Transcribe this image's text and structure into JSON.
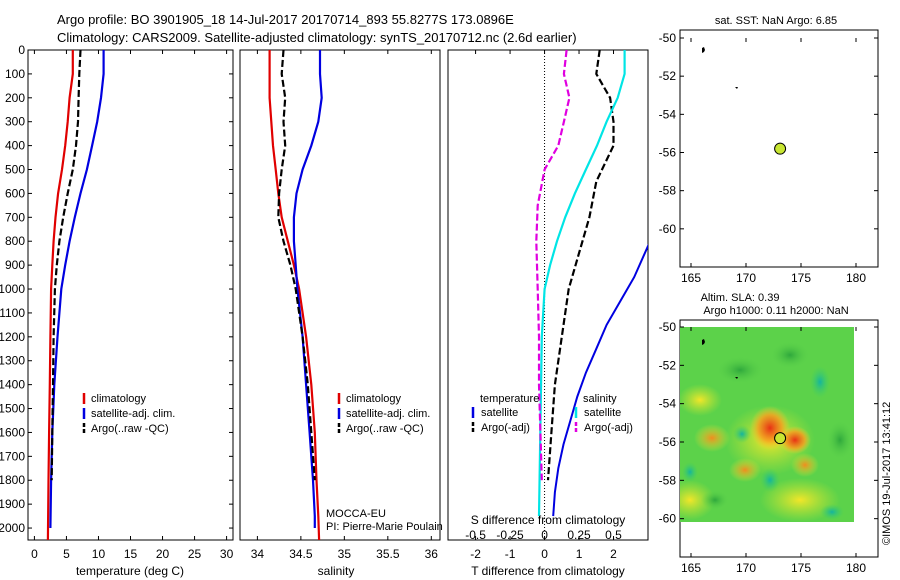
{
  "header": {
    "title_line1": "Argo profile: BO 3901905_18 14-Jul-2017 20170714_893 55.8277S 173.0896E",
    "title_line2": "Climatology: CARS2009. Satellite-adjusted climatology: synTS_20170712.nc (2.6d earlier)"
  },
  "footer": {
    "stamp": "©IMOS 19-Jul-2017 13:41:12",
    "institute": "MOCCA-EU",
    "pi": "PI: Pierre-Marie Poulain"
  },
  "colors": {
    "climatology": "#e00000",
    "satellite": "#0000e0",
    "argo": "#000000",
    "satellite_salinity": "#00e5e5",
    "argo_salinity": "#e000e0",
    "marker": "#c8e632"
  },
  "chart_data": [
    {
      "type": "line",
      "name": "temperature",
      "xlabel": "temperature (deg C)",
      "xlim": [
        -1,
        31
      ],
      "ylim": [
        2050,
        0
      ],
      "xticks": [
        "0",
        "5",
        "10",
        "15",
        "20",
        "25",
        "30"
      ],
      "yticks": [
        "0",
        "100",
        "200",
        "300",
        "400",
        "500",
        "600",
        "700",
        "800",
        "900",
        "1000",
        "1100",
        "1200",
        "1300",
        "1400",
        "1500",
        "1600",
        "1700",
        "1800",
        "1900",
        "2000"
      ],
      "legend": [
        "climatology",
        "satellite-adj. clim.",
        "Argo(..raw -QC)"
      ],
      "series": [
        {
          "name": "climatology",
          "x": [
            6.0,
            6.0,
            5.5,
            5.2,
            4.8,
            4.3,
            3.7,
            3.3,
            3.0,
            2.8,
            2.6,
            2.5,
            2.4,
            2.3,
            2.2,
            2.1
          ],
          "y": [
            0,
            100,
            200,
            300,
            400,
            500,
            600,
            700,
            800,
            900,
            1000,
            1200,
            1400,
            1600,
            1800,
            2050
          ]
        },
        {
          "name": "satellite-adj. clim.",
          "x": [
            10.8,
            10.8,
            10.4,
            9.8,
            9.0,
            8.2,
            7.2,
            6.3,
            5.5,
            4.8,
            4.2,
            3.6,
            3.1,
            2.8,
            2.6,
            2.5
          ],
          "y": [
            0,
            100,
            200,
            300,
            400,
            500,
            600,
            700,
            800,
            900,
            1000,
            1200,
            1400,
            1600,
            1800,
            2000
          ]
        },
        {
          "name": "Argo(..raw -QC)",
          "x": [
            7.2,
            7.0,
            6.9,
            6.8,
            6.5,
            6.0,
            5.2,
            4.5,
            3.9,
            3.5,
            3.2,
            3.0,
            2.9,
            2.8,
            2.7
          ],
          "y": [
            0,
            100,
            200,
            300,
            400,
            500,
            600,
            700,
            800,
            900,
            1000,
            1200,
            1400,
            1600,
            1800
          ]
        }
      ]
    },
    {
      "type": "line",
      "name": "salinity",
      "xlabel": "salinity",
      "xlim": [
        33.8,
        36.1
      ],
      "ylim": [
        2050,
        0
      ],
      "xticks": [
        "34",
        "34.5",
        "35",
        "35.5",
        "36"
      ],
      "legend": [
        "climatology",
        "satellite-adj. clim.",
        "Argo(..raw -QC)"
      ],
      "series": [
        {
          "name": "climatology",
          "x": [
            34.14,
            34.14,
            34.14,
            34.16,
            34.18,
            34.21,
            34.24,
            34.28,
            34.35,
            34.42,
            34.48,
            34.56,
            34.62,
            34.66,
            34.68,
            34.7,
            34.71
          ],
          "y": [
            0,
            100,
            200,
            300,
            400,
            500,
            600,
            700,
            800,
            900,
            1000,
            1200,
            1400,
            1600,
            1800,
            1950,
            2050
          ]
        },
        {
          "name": "satellite-adj. clim.",
          "x": [
            34.72,
            34.72,
            34.74,
            34.7,
            34.62,
            34.52,
            34.45,
            34.42,
            34.42,
            34.44,
            34.46,
            34.52,
            34.56,
            34.6,
            34.64,
            34.66,
            34.66
          ],
          "y": [
            0,
            100,
            200,
            300,
            400,
            500,
            600,
            700,
            800,
            900,
            1000,
            1200,
            1400,
            1600,
            1800,
            1950,
            2000
          ]
        },
        {
          "name": "Argo(..raw -QC)",
          "x": [
            34.3,
            34.28,
            34.32,
            34.3,
            34.32,
            34.28,
            34.25,
            34.24,
            34.3,
            34.38,
            34.44,
            34.52,
            34.58,
            34.62,
            34.66
          ],
          "y": [
            0,
            100,
            200,
            300,
            400,
            500,
            600,
            700,
            800,
            900,
            1000,
            1200,
            1400,
            1600,
            1800
          ]
        }
      ]
    },
    {
      "type": "line",
      "name": "difference from climatology",
      "xlabel": "T difference from climatology",
      "x2label": "S difference from climatology",
      "xlim": [
        -2.8,
        3.0
      ],
      "x2lim": [
        -0.7,
        0.75
      ],
      "ylim": [
        2050,
        0
      ],
      "xticks": [
        "-2",
        "-1",
        "0",
        "1",
        "2"
      ],
      "x2ticks": [
        "-0.5",
        "-0.25",
        "0",
        "0.25",
        "0.5"
      ],
      "legend_temperature_title": "temperature",
      "legend_salinity_title": "salinity",
      "legend_temperature": [
        "satellite",
        "Argo(-adj)"
      ],
      "legend_salinity": [
        "satellite",
        "Argo(-adj)"
      ],
      "series": [
        {
          "name": "temperature satellite",
          "x": [
            3.4,
            3.0,
            2.6,
            2.2,
            1.8,
            1.5,
            1.2,
            0.95,
            0.75,
            0.55,
            0.4,
            0.3,
            0.25
          ],
          "y": [
            700,
            820,
            950,
            1050,
            1150,
            1250,
            1350,
            1450,
            1550,
            1650,
            1750,
            1850,
            1950
          ]
        },
        {
          "name": "temperature Argo(-adj)",
          "x": [
            1.6,
            1.5,
            1.9,
            2.0,
            2.0,
            1.5,
            1.3,
            1.0,
            0.7,
            0.5,
            0.3,
            0.2,
            0.1
          ],
          "y": [
            0,
            100,
            200,
            300,
            400,
            550,
            700,
            850,
            1000,
            1200,
            1400,
            1600,
            1800
          ]
        },
        {
          "name": "salinity satellite",
          "x": [
            0.58,
            0.58,
            0.53,
            0.45,
            0.38,
            0.3,
            0.22,
            0.15,
            0.09,
            0.04,
            0.0,
            -0.02,
            -0.04
          ],
          "y": [
            0,
            100,
            200,
            300,
            400,
            500,
            600,
            700,
            800,
            900,
            1000,
            1200,
            1950
          ]
        },
        {
          "name": "salinity Argo(-adj)",
          "x": [
            0.16,
            0.14,
            0.18,
            0.14,
            0.1,
            0.0,
            -0.05,
            -0.06,
            -0.05,
            -0.04,
            -0.04,
            -0.03,
            -0.02
          ],
          "y": [
            0,
            100,
            200,
            300,
            400,
            500,
            650,
            800,
            1000,
            1200,
            1400,
            1600,
            1800
          ]
        }
      ]
    },
    {
      "type": "scatter",
      "name": "sst map",
      "title": "sat. SST: NaN Argo: 6.85",
      "xlim": [
        164,
        182
      ],
      "ylim": [
        -50,
        -62
      ],
      "xticks": [
        "165",
        "170",
        "175",
        "180"
      ],
      "yticks": [
        "-50",
        "-52",
        "-54",
        "-56",
        "-58",
        "-60"
      ],
      "points": [
        {
          "x": 173.1,
          "y": -55.8
        }
      ]
    },
    {
      "type": "heatmap",
      "name": "altimetry map",
      "title_line1": "Altim. SLA: 0.39",
      "title_line2": "Argo h1000: 0.11 h2000: NaN",
      "xlim": [
        164,
        182
      ],
      "ylim": [
        -50,
        -62
      ],
      "xticks": [
        "165",
        "170",
        "175",
        "180"
      ],
      "yticks": [
        "-50",
        "-52",
        "-54",
        "-56",
        "-58",
        "-60"
      ],
      "extent": {
        "lon": [
          164,
          180
        ],
        "lat": [
          -50,
          -60
        ]
      },
      "points": [
        {
          "x": 173.1,
          "y": -55.8
        }
      ]
    }
  ]
}
